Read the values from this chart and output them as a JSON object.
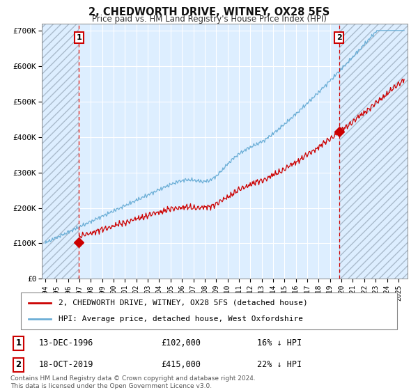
{
  "title": "2, CHEDWORTH DRIVE, WITNEY, OX28 5FS",
  "subtitle": "Price paid vs. HM Land Registry's House Price Index (HPI)",
  "ylim": [
    0,
    720000
  ],
  "yticks": [
    0,
    100000,
    200000,
    300000,
    400000,
    500000,
    600000,
    700000
  ],
  "ytick_labels": [
    "£0",
    "£100K",
    "£200K",
    "£300K",
    "£400K",
    "£500K",
    "£600K",
    "£700K"
  ],
  "hpi_color": "#6baed6",
  "price_color": "#cc0000",
  "bg_color": "#ffffff",
  "plot_bg_color": "#ddeeff",
  "hatch_color": "#bbbbcc",
  "grid_color": "#ffffff",
  "marker1_date": 1996.95,
  "marker1_price": 102000,
  "marker2_date": 2019.79,
  "marker2_price": 415000,
  "vline_color": "#cc0000",
  "legend_items": [
    {
      "label": "2, CHEDWORTH DRIVE, WITNEY, OX28 5FS (detached house)",
      "color": "#cc0000"
    },
    {
      "label": "HPI: Average price, detached house, West Oxfordshire",
      "color": "#6baed6"
    }
  ],
  "annotation_rows": [
    {
      "num": "1",
      "date": "13-DEC-1996",
      "price": "£102,000",
      "pct": "16% ↓ HPI"
    },
    {
      "num": "2",
      "date": "18-OCT-2019",
      "price": "£415,000",
      "pct": "22% ↓ HPI"
    }
  ],
  "footer": "Contains HM Land Registry data © Crown copyright and database right 2024.\nThis data is licensed under the Open Government Licence v3.0.",
  "xmin": 1993.7,
  "xmax": 2025.8,
  "hatch_end": 1996.95
}
